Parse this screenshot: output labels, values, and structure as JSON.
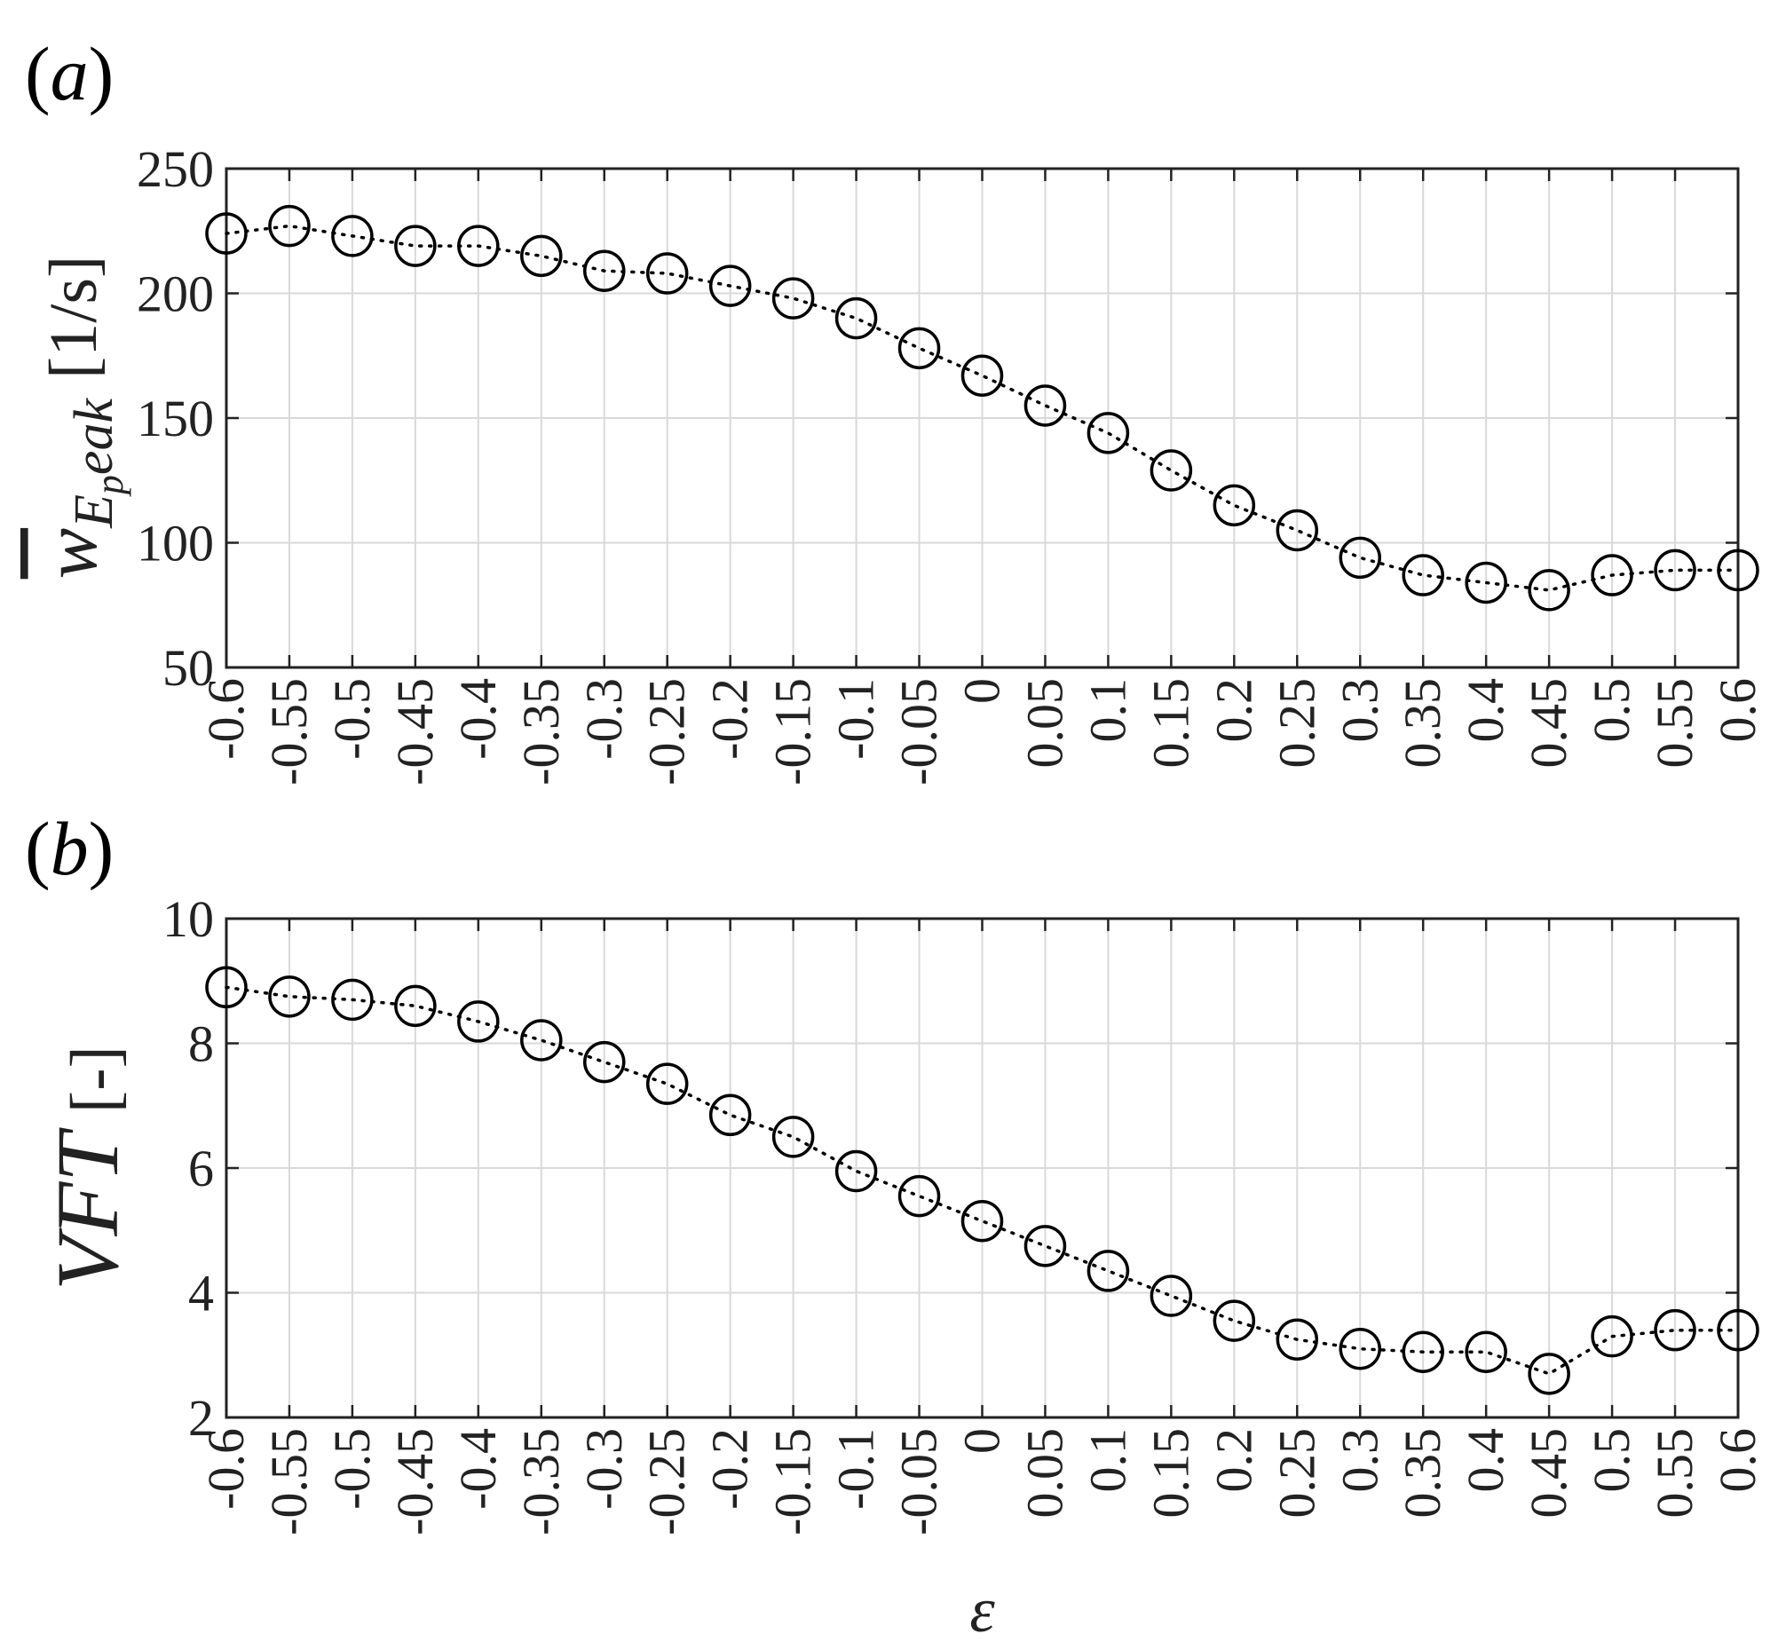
{
  "chart_data": [
    {
      "panel_label": "(a)",
      "type": "line",
      "series_style": {
        "marker": "open-circle",
        "line": "dotted",
        "color": "#000000"
      },
      "ylabel": {
        "base": "w",
        "sub": "E",
        "subsub": "p",
        "rest": "eak",
        "unit": "[1/s]"
      },
      "ylim": [
        50,
        250
      ],
      "yticks": [
        50,
        100,
        150,
        200,
        250
      ],
      "xlim": [
        -0.6,
        0.6
      ],
      "xtick_labels": [
        "-0.6",
        "-0.55",
        "-0.5",
        "-0.45",
        "-0.4",
        "-0.35",
        "-0.3",
        "-0.25",
        "-0.2",
        "-0.15",
        "-0.1",
        "-0.05",
        "0",
        "0.05",
        "0.1",
        "0.15",
        "0.2",
        "0.25",
        "0.3",
        "0.35",
        "0.4",
        "0.45",
        "0.5",
        "0.55",
        "0.6"
      ],
      "x": [
        -0.6,
        -0.55,
        -0.5,
        -0.45,
        -0.4,
        -0.35,
        -0.3,
        -0.25,
        -0.2,
        -0.15,
        -0.1,
        -0.05,
        0,
        0.05,
        0.1,
        0.15,
        0.2,
        0.25,
        0.3,
        0.35,
        0.4,
        0.45,
        0.5,
        0.55,
        0.6
      ],
      "values": [
        224,
        227,
        223,
        219,
        219,
        215,
        209,
        208,
        203,
        198,
        190,
        178,
        167,
        155,
        144,
        129,
        115,
        105,
        94,
        87,
        84,
        81,
        87,
        89,
        89
      ],
      "grid": true
    },
    {
      "panel_label": "(b)",
      "type": "line",
      "series_style": {
        "marker": "open-circle",
        "line": "dotted",
        "color": "#000000"
      },
      "ylabel": {
        "base": "VFT",
        "unit": "[-]"
      },
      "xlabel": "ε",
      "ylim": [
        2,
        10
      ],
      "yticks": [
        2,
        4,
        6,
        8,
        10
      ],
      "xlim": [
        -0.6,
        0.6
      ],
      "xtick_labels": [
        "-0.6",
        "-0.55",
        "-0.5",
        "-0.45",
        "-0.4",
        "-0.35",
        "-0.3",
        "-0.25",
        "-0.2",
        "-0.15",
        "-0.1",
        "-0.05",
        "0",
        "0.05",
        "0.1",
        "0.15",
        "0.2",
        "0.25",
        "0.3",
        "0.35",
        "0.4",
        "0.45",
        "0.5",
        "0.55",
        "0.6"
      ],
      "x": [
        -0.6,
        -0.55,
        -0.5,
        -0.45,
        -0.4,
        -0.35,
        -0.3,
        -0.25,
        -0.2,
        -0.15,
        -0.1,
        -0.05,
        0,
        0.05,
        0.1,
        0.15,
        0.2,
        0.25,
        0.3,
        0.35,
        0.4,
        0.45,
        0.5,
        0.55,
        0.6
      ],
      "values": [
        8.9,
        8.75,
        8.7,
        8.6,
        8.35,
        8.05,
        7.7,
        7.35,
        6.85,
        6.5,
        5.95,
        5.55,
        5.15,
        4.75,
        4.35,
        3.95,
        3.55,
        3.25,
        3.1,
        3.05,
        3.05,
        2.7,
        3.3,
        3.4,
        3.4
      ],
      "grid": true
    }
  ]
}
